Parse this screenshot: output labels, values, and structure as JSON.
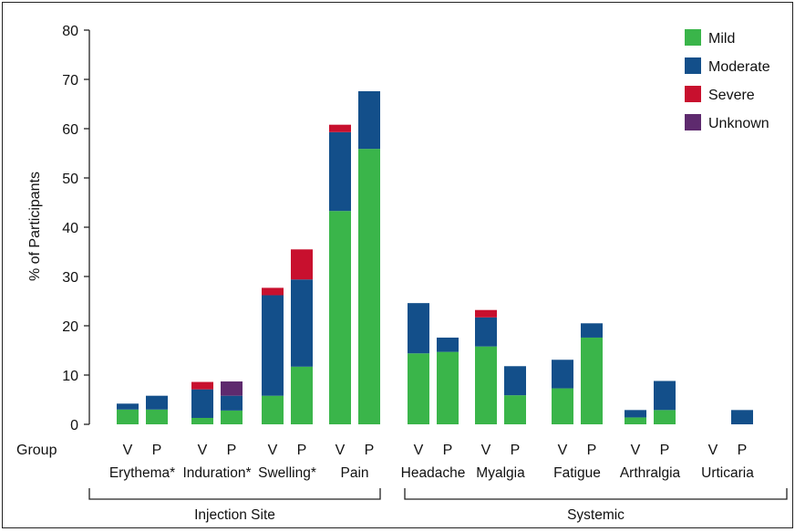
{
  "chart_data": {
    "type": "bar",
    "subtype": "stacked",
    "ylabel": "% of Participants",
    "ylim": [
      0,
      80
    ],
    "yticks": [
      0,
      10,
      20,
      30,
      40,
      50,
      60,
      70,
      80
    ],
    "row_label": "Group",
    "series": [
      {
        "name": "Mild",
        "color": "#3ab54a"
      },
      {
        "name": "Moderate",
        "color": "#134f8a"
      },
      {
        "name": "Severe",
        "color": "#c8102e"
      },
      {
        "name": "Unknown",
        "color": "#5e2a6e"
      }
    ],
    "categories": [
      {
        "name": "Erythema*",
        "group": "Injection Site",
        "bars": [
          {
            "label": "V",
            "values": [
              3,
              1.2,
              0,
              0
            ]
          },
          {
            "label": "P",
            "values": [
              3,
              2.8,
              0,
              0
            ]
          }
        ]
      },
      {
        "name": "Induration*",
        "group": "Injection Site",
        "bars": [
          {
            "label": "V",
            "values": [
              1.3,
              5.8,
              1.5,
              0
            ]
          },
          {
            "label": "P",
            "values": [
              2.8,
              3.0,
              0,
              2.9
            ]
          }
        ]
      },
      {
        "name": "Swelling*",
        "group": "Injection Site",
        "bars": [
          {
            "label": "V",
            "values": [
              5.8,
              20.4,
              1.5,
              0
            ]
          },
          {
            "label": "P",
            "values": [
              11.7,
              17.7,
              6.1,
              0
            ]
          }
        ]
      },
      {
        "name": "Pain",
        "group": "Injection Site",
        "bars": [
          {
            "label": "V",
            "values": [
              43.3,
              16.0,
              1.5,
              0
            ]
          },
          {
            "label": "P",
            "values": [
              55.9,
              11.7,
              0,
              0
            ]
          }
        ]
      },
      {
        "name": "Headache",
        "group": "Systemic",
        "bars": [
          {
            "label": "V",
            "values": [
              14.4,
              10.2,
              0,
              0
            ]
          },
          {
            "label": "P",
            "values": [
              14.7,
              2.9,
              0,
              0
            ]
          }
        ]
      },
      {
        "name": "Myalgia",
        "group": "Systemic",
        "bars": [
          {
            "label": "V",
            "values": [
              15.8,
              5.9,
              1.5,
              0
            ]
          },
          {
            "label": "P",
            "values": [
              5.9,
              5.9,
              0,
              0
            ]
          }
        ]
      },
      {
        "name": "Fatigue",
        "group": "Systemic",
        "bars": [
          {
            "label": "V",
            "values": [
              7.3,
              5.8,
              0,
              0
            ]
          },
          {
            "label": "P",
            "values": [
              17.6,
              2.9,
              0,
              0
            ]
          }
        ]
      },
      {
        "name": "Arthralgia",
        "group": "Systemic",
        "bars": [
          {
            "label": "V",
            "values": [
              1.4,
              1.5,
              0,
              0
            ]
          },
          {
            "label": "P",
            "values": [
              2.9,
              5.9,
              0,
              0
            ]
          }
        ]
      },
      {
        "name": "Urticaria",
        "group": "Systemic",
        "bars": [
          {
            "label": "V",
            "values": [
              0,
              0,
              0,
              0
            ]
          },
          {
            "label": "P",
            "values": [
              0,
              2.9,
              0,
              0
            ]
          }
        ]
      }
    ],
    "groups": [
      "Injection Site",
      "Systemic"
    ],
    "legend_position": "top-right",
    "grid": false
  }
}
